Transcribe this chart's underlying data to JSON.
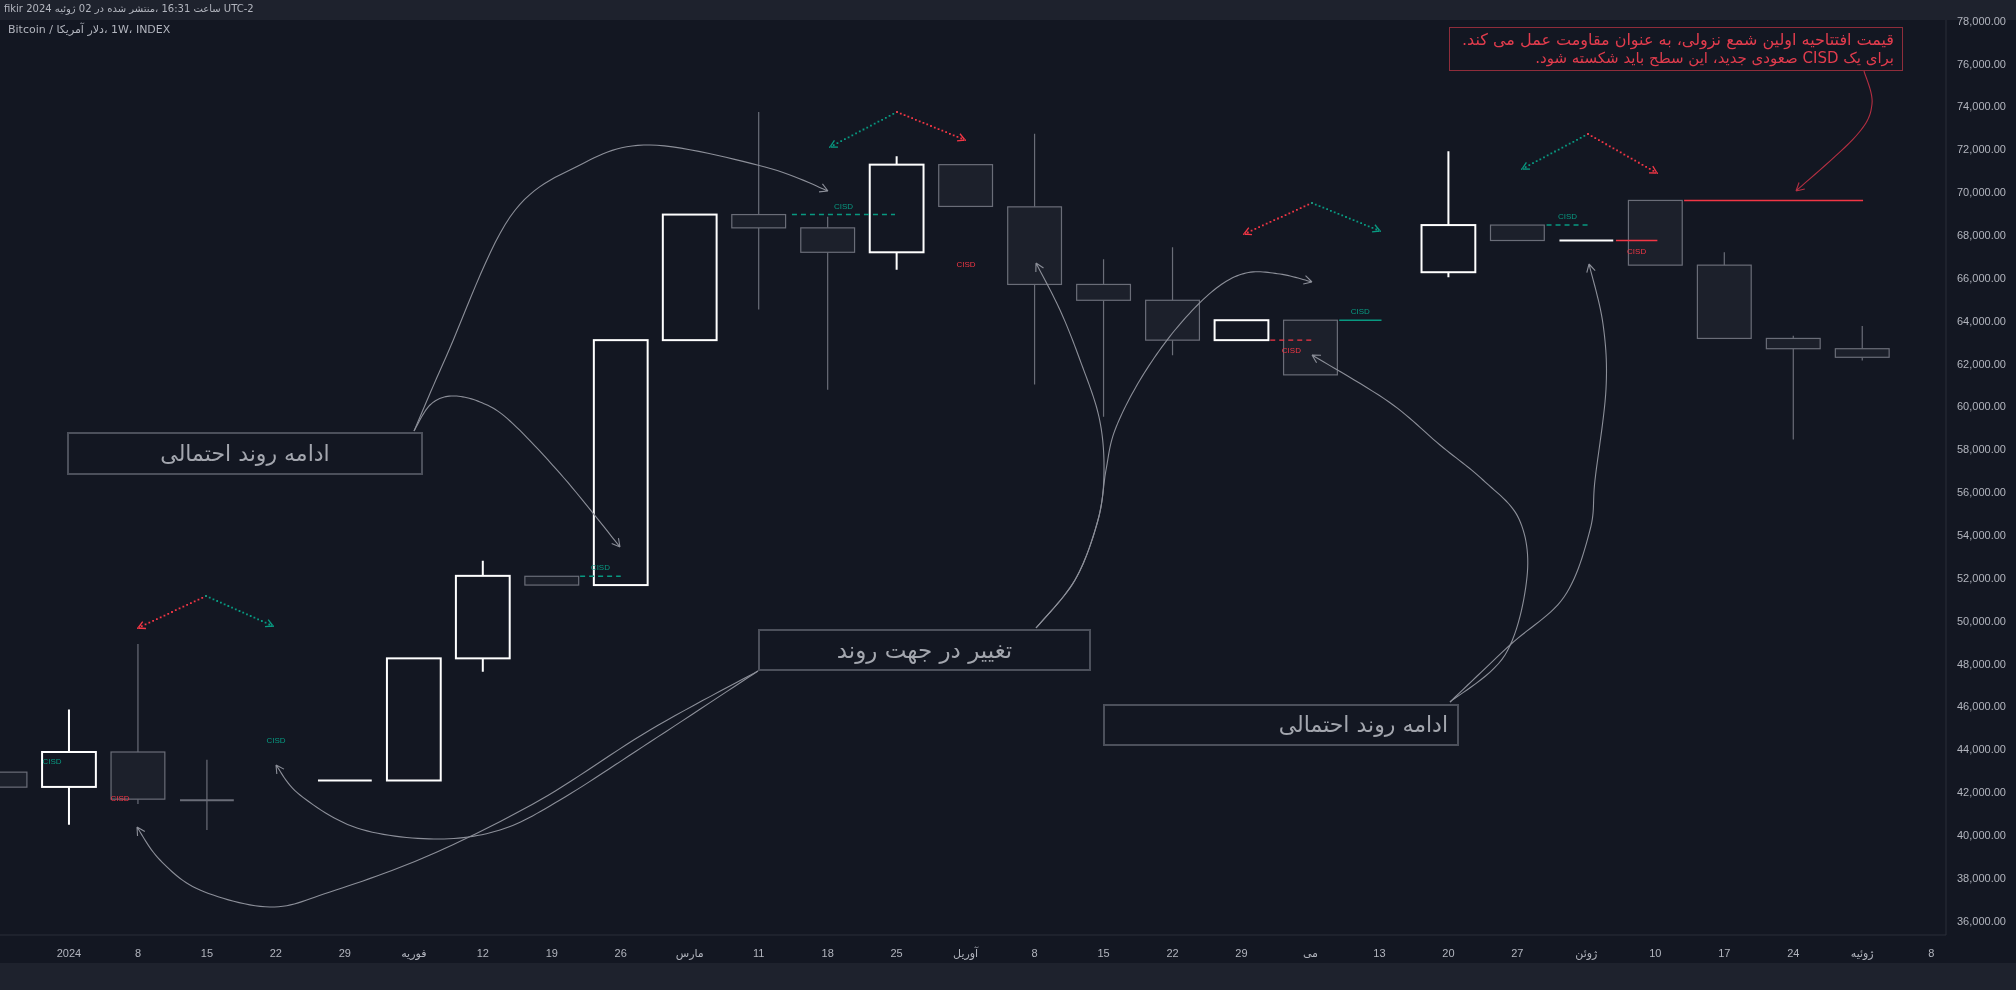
{
  "chart_data": {
    "type": "candlestick",
    "title": "Bitcoin / دلار آمریکا، 1W، INDEX",
    "subtitle": "fikir منتشر شده در 02 ژوئیه 2024، ساعت 16:31 UTC-2",
    "x": [
      "2023-12-25",
      "2024-01-01",
      "2024-01-08",
      "2024-01-15",
      "2024-01-29",
      "2024-02-05",
      "2024-02-12",
      "2024-02-19",
      "2024-02-26",
      "2024-03-04",
      "2024-03-11",
      "2024-03-18",
      "2024-03-25",
      "2024-04-01",
      "2024-04-08",
      "2024-04-15",
      "2024-04-22",
      "2024-04-29",
      "2024-05-06",
      "2024-05-20",
      "2024-05-27",
      "2024-06-03",
      "2024-06-10",
      "2024-06-17",
      "2024-06-24",
      "2024-07-01"
    ],
    "ohlc": [
      [
        42930,
        42930,
        42230,
        42230
      ],
      [
        42240,
        45850,
        40470,
        43870
      ],
      [
        43870,
        48910,
        41440,
        41670
      ],
      [
        41620,
        43510,
        40230,
        41580
      ],
      [
        42540,
        42540,
        42540,
        42540
      ],
      [
        42540,
        48240,
        42540,
        48240
      ],
      [
        48240,
        52800,
        47610,
        52090
      ],
      [
        52070,
        52070,
        51660,
        51660
      ],
      [
        51660,
        63090,
        51660,
        63090
      ],
      [
        63090,
        68950,
        63090,
        68950
      ],
      [
        68950,
        73740,
        64520,
        68330
      ],
      [
        68330,
        68850,
        60780,
        67190
      ],
      [
        67190,
        71670,
        66380,
        71280
      ],
      [
        71280,
        71280,
        69330,
        69330
      ],
      [
        69310,
        72720,
        61020,
        65690
      ],
      [
        65690,
        66870,
        59520,
        64950
      ],
      [
        64950,
        67430,
        62380,
        63090
      ],
      [
        63090,
        64020,
        63090,
        64020
      ],
      [
        64020,
        64020,
        61470,
        61470
      ],
      [
        66260,
        71910,
        66030,
        68460
      ],
      [
        68460,
        68460,
        67740,
        67740
      ],
      [
        67740,
        67740,
        67740,
        67740
      ],
      [
        69610,
        69610,
        66590,
        66590
      ],
      [
        66590,
        67190,
        63170,
        63170
      ],
      [
        63170,
        63290,
        58450,
        62690
      ],
      [
        62690,
        63750,
        62140,
        62290
      ]
    ],
    "colors": [
      "#6a6d78",
      "#ffffff",
      "#6a6d78",
      "#6a6d78",
      "#ffffff",
      "#ffffff",
      "#ffffff",
      "#6a6d78",
      "#ffffff",
      "#ffffff",
      "#6a6d78",
      "#6a6d78",
      "#ffffff",
      "#6a6d78",
      "#6a6d78",
      "#6a6d78",
      "#6a6d78",
      "#ffffff",
      "#6a6d78",
      "#ffffff",
      "#6a6d78",
      "#ffffff",
      "#6a6d78",
      "#6a6d78",
      "#6a6d78",
      "#6a6d78"
    ],
    "series": [
      {
        "type": "line",
        "name": "CISD",
        "color": "#089981",
        "line_style": "dashed",
        "x": [
          "2024-02-21T21:00",
          "2024-02-26T00:00"
        ],
        "values": [
          52070,
          52070
        ]
      },
      {
        "type": "line",
        "name": "CISD",
        "color": "#089981",
        "line_style": "dashed",
        "x": [
          "2024-03-14T09:00",
          "2024-03-24T20:00"
        ],
        "values": [
          68950,
          68950
        ]
      },
      {
        "type": "line",
        "name": "CISD",
        "color": "#f23645",
        "line_style": "dashed",
        "x": [
          "2024-05-01T22:00",
          "2024-05-06T05:00"
        ],
        "values": [
          63090,
          63090
        ]
      },
      {
        "type": "line",
        "name": "CISD",
        "color": "#089981",
        "line_style": "solid",
        "x": [
          "2024-05-08T22:00",
          "2024-05-13T05:00"
        ],
        "values": [
          64020,
          64020
        ]
      },
      {
        "type": "line",
        "name": "CISD",
        "color": "#089981",
        "line_style": "dashed",
        "x": [
          "2024-05-29T23:00",
          "2024-06-03T05:00"
        ],
        "values": [
          68460,
          68460
        ]
      },
      {
        "type": "line",
        "name": "CISD",
        "color": "#f23645",
        "line_style": "solid",
        "x": [
          "2024-06-06T00:00",
          "2024-06-10T05:00"
        ],
        "values": [
          67740,
          67740
        ]
      },
      {
        "type": "line",
        "color": "#f23645",
        "line_style": "solid",
        "x": [
          "2024-06-12T22:00",
          "2024-07-01T02:00"
        ],
        "values": [
          69610,
          69610
        ]
      }
    ],
    "annotations": [
      "CISD",
      "CISD",
      "CISD",
      "CISD",
      "ادامه روند احتمالی",
      "تغییر در جهت روند",
      "ادامه روند احتمالی",
      "قیمت افتتاحیه اولین شمع نزولی، به عنوان مقاومت عمل می کند.\nبرای یک CISD صعودی جدید، این سطح باید شکسته شود."
    ],
    "xlim": [
      "2023-12-25",
      "2024-07-09T12:00"
    ],
    "ylim": [
      35330,
      78030
    ],
    "xticks": [
      {
        "value": "2024-01-01",
        "label": "2024"
      },
      {
        "value": "2024-01-08",
        "label": "8"
      },
      {
        "value": "2024-01-15",
        "label": "15"
      },
      {
        "value": "2024-01-22",
        "label": "22"
      },
      {
        "value": "2024-01-29",
        "label": "29"
      },
      {
        "value": "2024-02-05",
        "label": "فوریه"
      },
      {
        "value": "2024-02-12",
        "label": "12"
      },
      {
        "value": "2024-02-19",
        "label": "19"
      },
      {
        "value": "2024-02-26",
        "label": "26"
      },
      {
        "value": "2024-03-04",
        "label": "مارس"
      },
      {
        "value": "2024-03-11",
        "label": "11"
      },
      {
        "value": "2024-03-18",
        "label": "18"
      },
      {
        "value": "2024-03-25",
        "label": "25"
      },
      {
        "value": "2024-04-01",
        "label": "آوریل"
      },
      {
        "value": "2024-04-08",
        "label": "8"
      },
      {
        "value": "2024-04-15",
        "label": "15"
      },
      {
        "value": "2024-04-22",
        "label": "22"
      },
      {
        "value": "2024-04-29",
        "label": "29"
      },
      {
        "value": "2024-05-06",
        "label": "می"
      },
      {
        "value": "2024-05-13",
        "label": "13"
      },
      {
        "value": "2024-05-20",
        "label": "20"
      },
      {
        "value": "2024-05-27",
        "label": "27"
      },
      {
        "value": "2024-06-03",
        "label": "ژوئن"
      },
      {
        "value": "2024-06-10",
        "label": "10"
      },
      {
        "value": "2024-06-17",
        "label": "17"
      },
      {
        "value": "2024-06-24",
        "label": "24"
      },
      {
        "value": "2024-07-01",
        "label": "ژوئیه"
      },
      {
        "value": "2024-07-08",
        "label": "8"
      }
    ],
    "yticks": [
      {
        "value": 36000,
        "label": "36,000.00"
      },
      {
        "value": 38000,
        "label": "38,000.00"
      },
      {
        "value": 40000,
        "label": "40,000.00"
      },
      {
        "value": 42000,
        "label": "42,000.00"
      },
      {
        "value": 44000,
        "label": "44,000.00"
      },
      {
        "value": 46000,
        "label": "46,000.00"
      },
      {
        "value": 48000,
        "label": "48,000.00"
      },
      {
        "value": 50000,
        "label": "50,000.00"
      },
      {
        "value": 52000,
        "label": "52,000.00"
      },
      {
        "value": 54000,
        "label": "54,000.00"
      },
      {
        "value": 56000,
        "label": "56,000.00"
      },
      {
        "value": 58000,
        "label": "58,000.00"
      },
      {
        "value": 60000,
        "label": "60,000.00"
      },
      {
        "value": 62000,
        "label": "62,000.00"
      },
      {
        "value": 64000,
        "label": "64,000.00"
      },
      {
        "value": 66000,
        "label": "66,000.00"
      },
      {
        "value": 68000,
        "label": "68,000.00"
      },
      {
        "value": 70000,
        "label": "70,000.00"
      },
      {
        "value": 72000,
        "label": "72,000.00"
      },
      {
        "value": 74000,
        "label": "74,000.00"
      },
      {
        "value": 76000,
        "label": "76,000.00"
      },
      {
        "value": 78000,
        "label": "78,000.00"
      }
    ]
  }
}
